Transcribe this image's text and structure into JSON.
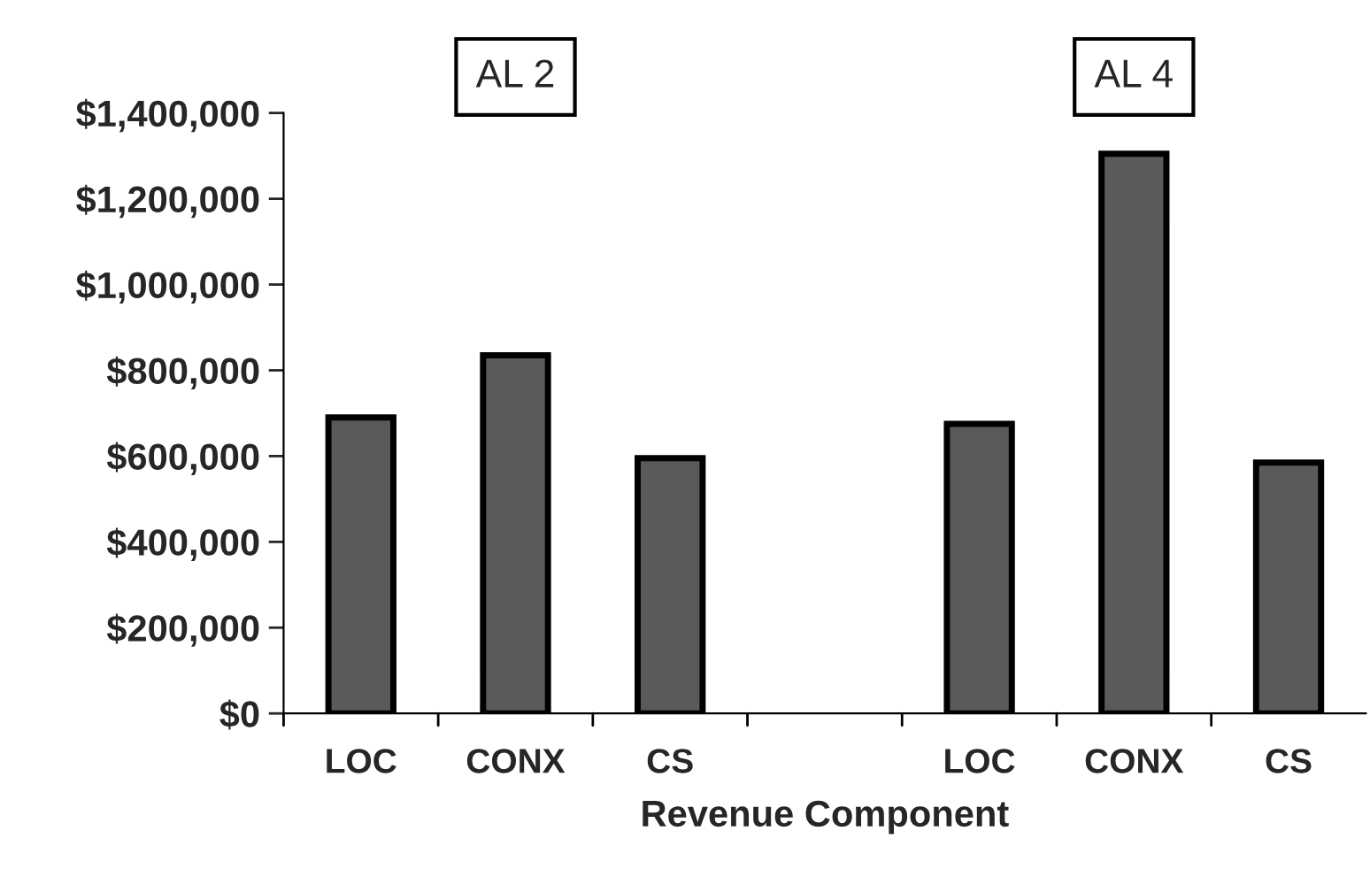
{
  "chart_data": {
    "type": "bar",
    "xlabel": "Revenue Component",
    "categories": [
      "LOC",
      "CONX",
      "CS",
      null,
      "LOC",
      "CONX",
      "CS"
    ],
    "values": [
      690000,
      835000,
      595000,
      null,
      675000,
      1305000,
      585000
    ],
    "color": "#5a5a5a",
    "ylim": [
      0,
      1400000
    ],
    "yticks": [
      {
        "value": 0,
        "label": "$0"
      },
      {
        "value": 200000,
        "label": "$200,000"
      },
      {
        "value": 400000,
        "label": "$400,000"
      },
      {
        "value": 600000,
        "label": "$600,000"
      },
      {
        "value": 800000,
        "label": "$800,000"
      },
      {
        "value": 1000000,
        "label": "$1,000,000"
      },
      {
        "value": 1200000,
        "label": "$1,200,000"
      },
      {
        "value": 1400000,
        "label": "$1,400,000"
      }
    ],
    "annotations": [
      "AL 2",
      "AL 4"
    ],
    "grid": false,
    "legend": false
  }
}
